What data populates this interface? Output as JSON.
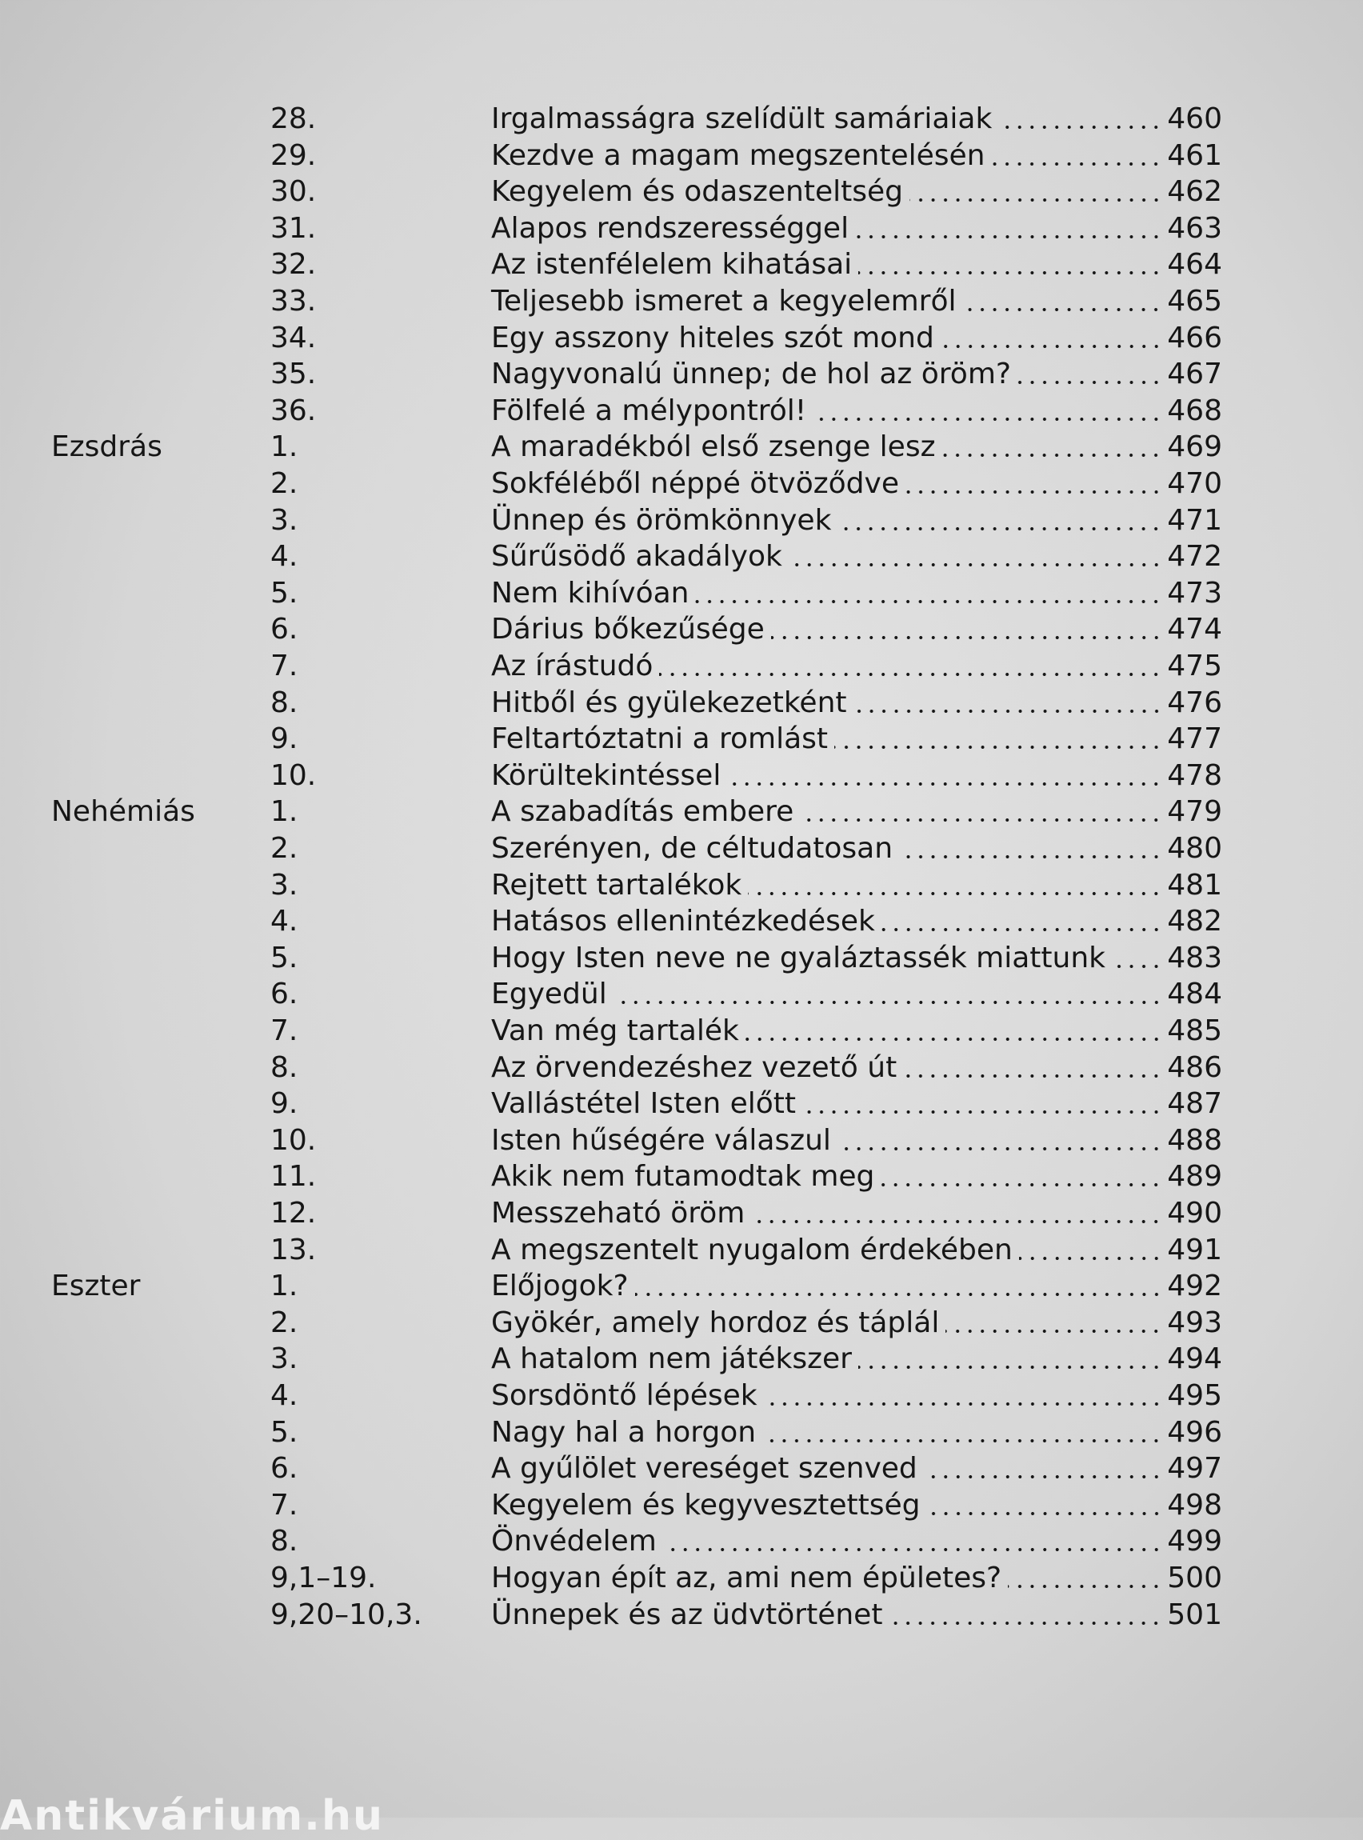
{
  "entries": [
    {
      "number": "28.",
      "title": "Irgalmasságra szelídült samáriaiak",
      "page": "460"
    },
    {
      "number": "29.",
      "title": "Kezdve a magam megszentelésén",
      "page": "461"
    },
    {
      "number": "30.",
      "title": "Kegyelem és odaszenteltség",
      "page": "462"
    },
    {
      "number": "31.",
      "title": "Alapos rendszerességgel",
      "page": "463"
    },
    {
      "number": "32.",
      "title": "Az istenfélelem kihatásai",
      "page": "464"
    },
    {
      "number": "33.",
      "title": "Teljesebb ismeret a kegyelemről",
      "page": "465"
    },
    {
      "number": "34.",
      "title": "Egy asszony hiteles szót mond",
      "page": "466"
    },
    {
      "number": "35.",
      "title": "Nagyvonalú ünnep; de hol az öröm?",
      "page": "467"
    },
    {
      "number": "36.",
      "title": "Fölfelé a mélypontról!",
      "page": "468"
    },
    {
      "book": "Ezsdrás",
      "number": "1.",
      "title": "A maradékból első zsenge lesz",
      "page": "469"
    },
    {
      "number": "2.",
      "title": "Sokféléből néppé ötvöződve",
      "page": "470"
    },
    {
      "number": "3.",
      "title": "Ünnep és örömkönnyek",
      "page": "471"
    },
    {
      "number": "4.",
      "title": "Sűrűsödő akadályok",
      "page": "472"
    },
    {
      "number": "5.",
      "title": "Nem kihívóan",
      "page": "473"
    },
    {
      "number": "6.",
      "title": "Dárius bőkezűsége",
      "page": "474"
    },
    {
      "number": "7.",
      "title": "Az írástudó",
      "page": "475"
    },
    {
      "number": "8.",
      "title": "Hitből és gyülekezetként",
      "page": "476"
    },
    {
      "number": "9.",
      "title": "Feltartóztatni a romlást",
      "page": "477"
    },
    {
      "number": "10.",
      "title": "Körültekintéssel",
      "page": "478"
    },
    {
      "book": "Nehémiás",
      "number": "1.",
      "title": "A szabadítás embere",
      "page": "479"
    },
    {
      "number": "2.",
      "title": "Szerényen, de céltudatosan",
      "page": "480"
    },
    {
      "number": "3.",
      "title": "Rejtett tartalékok",
      "page": "481"
    },
    {
      "number": "4.",
      "title": "Hatásos ellenintézkedések",
      "page": "482"
    },
    {
      "number": "5.",
      "title": "Hogy Isten neve ne gyaláztassék miattunk",
      "page": "483"
    },
    {
      "number": "6.",
      "title": "Egyedül",
      "page": "484"
    },
    {
      "number": "7.",
      "title": "Van még tartalék",
      "page": "485"
    },
    {
      "number": "8.",
      "title": "Az örvendezéshez vezető út",
      "page": "486"
    },
    {
      "number": "9.",
      "title": "Vallástétel Isten előtt",
      "page": "487"
    },
    {
      "number": "10.",
      "title": "Isten hűségére válaszul",
      "page": "488"
    },
    {
      "number": "11.",
      "title": "Akik nem futamodtak meg",
      "page": "489"
    },
    {
      "number": "12.",
      "title": "Messzeható öröm",
      "page": "490"
    },
    {
      "number": "13.",
      "title": "A megszentelt nyugalom érdekében",
      "page": "491"
    },
    {
      "book": "Eszter",
      "number": "1.",
      "title": "Előjogok?",
      "page": "492"
    },
    {
      "number": "2.",
      "title": "Gyökér, amely hordoz és táplál",
      "page": "493"
    },
    {
      "number": "3.",
      "title": "A hatalom nem játékszer",
      "page": "494"
    },
    {
      "number": "4.",
      "title": "Sorsdöntő lépések",
      "page": "495"
    },
    {
      "number": "5.",
      "title": "Nagy hal a horgon",
      "page": "496"
    },
    {
      "number": "6.",
      "title": "A gyűlölet vereséget szenved",
      "page": "497"
    },
    {
      "number": "7.",
      "title": "Kegyelem és kegyvesztettség",
      "page": "498"
    },
    {
      "number": "8.",
      "title": "Önvédelem",
      "page": "499"
    },
    {
      "number": "9,1–19.",
      "title": "Hogyan épít az, ami nem épületes?",
      "page": "500"
    },
    {
      "number": "9,20–10,3.",
      "title": "Ünnepek és az üdvtörténet",
      "page": "501"
    }
  ],
  "watermark": "Antikvárium.hu"
}
